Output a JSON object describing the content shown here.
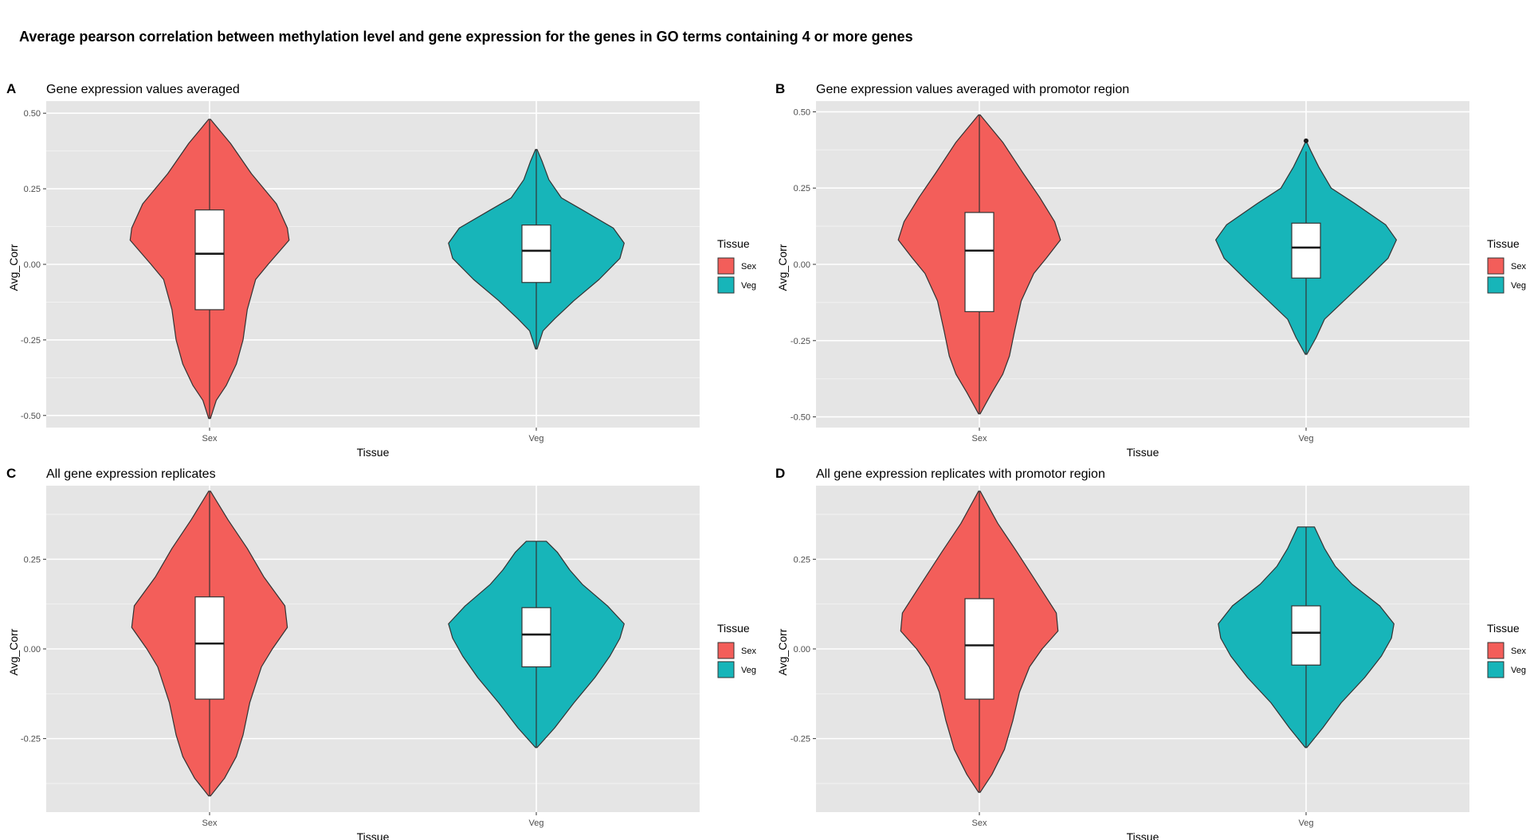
{
  "title": "Average pearson correlation between methylation level and gene expression for the genes in GO terms containing 4 or more genes",
  "colors": {
    "Sex": "#F35E5A",
    "Veg": "#17B5B9",
    "panel_bg": "#E5E5E5",
    "grid": "#FFFFFF"
  },
  "chart_data": [
    {
      "type": "violin",
      "letter": "A",
      "title": "Gene expression values averaged",
      "xlabel": "Tissue",
      "ylabel": "Avg_Corr",
      "ylim": [
        -0.54,
        0.54
      ],
      "yticks": [
        -0.5,
        -0.25,
        0,
        0.25,
        0.5
      ],
      "ytick_labels": [
        "-0.50",
        "-0.25",
        "0.00",
        "0.25",
        "0.50"
      ],
      "categories": [
        "Sex",
        "Veg"
      ],
      "legend": {
        "title": "Tissue",
        "entries": [
          "Sex",
          "Veg"
        ],
        "position": "right"
      },
      "series": [
        {
          "name": "Sex",
          "min": -0.51,
          "max": 0.48,
          "q1": -0.15,
          "median": 0.035,
          "q3": 0.18,
          "outliers": [],
          "density": [
            [
              -0.51,
              0.01
            ],
            [
              -0.45,
              0.08
            ],
            [
              -0.4,
              0.2
            ],
            [
              -0.33,
              0.32
            ],
            [
              -0.25,
              0.4
            ],
            [
              -0.15,
              0.45
            ],
            [
              -0.05,
              0.55
            ],
            [
              0.0,
              0.7
            ],
            [
              0.08,
              0.95
            ],
            [
              0.12,
              0.93
            ],
            [
              0.2,
              0.8
            ],
            [
              0.3,
              0.5
            ],
            [
              0.4,
              0.25
            ],
            [
              0.48,
              0.01
            ]
          ]
        },
        {
          "name": "Veg",
          "min": -0.28,
          "max": 0.38,
          "q1": -0.06,
          "median": 0.045,
          "q3": 0.13,
          "outliers": [],
          "density": [
            [
              -0.28,
              0.01
            ],
            [
              -0.22,
              0.08
            ],
            [
              -0.18,
              0.22
            ],
            [
              -0.12,
              0.45
            ],
            [
              -0.05,
              0.75
            ],
            [
              0.02,
              1.0
            ],
            [
              0.07,
              1.05
            ],
            [
              0.12,
              0.92
            ],
            [
              0.18,
              0.55
            ],
            [
              0.22,
              0.3
            ],
            [
              0.28,
              0.15
            ],
            [
              0.34,
              0.07
            ],
            [
              0.38,
              0.01
            ]
          ]
        }
      ]
    },
    {
      "type": "violin",
      "letter": "B",
      "title": "Gene expression values averaged with promotor region",
      "xlabel": "Tissue",
      "ylabel": "Avg_Corr",
      "ylim": [
        -0.535,
        0.535
      ],
      "yticks": [
        -0.5,
        -0.25,
        0,
        0.25,
        0.5
      ],
      "ytick_labels": [
        "-0.50",
        "-0.25",
        "0.00",
        "0.25",
        "0.50"
      ],
      "categories": [
        "Sex",
        "Veg"
      ],
      "legend": {
        "title": "Tissue",
        "entries": [
          "Sex",
          "Veg"
        ],
        "position": "right"
      },
      "series": [
        {
          "name": "Sex",
          "min": -0.49,
          "max": 0.49,
          "q1": -0.155,
          "median": 0.045,
          "q3": 0.17,
          "outliers": [],
          "density": [
            [
              -0.49,
              0.01
            ],
            [
              -0.42,
              0.15
            ],
            [
              -0.36,
              0.28
            ],
            [
              -0.3,
              0.36
            ],
            [
              -0.22,
              0.42
            ],
            [
              -0.12,
              0.5
            ],
            [
              -0.03,
              0.65
            ],
            [
              0.02,
              0.8
            ],
            [
              0.08,
              0.97
            ],
            [
              0.14,
              0.9
            ],
            [
              0.22,
              0.72
            ],
            [
              0.3,
              0.52
            ],
            [
              0.4,
              0.28
            ],
            [
              0.49,
              0.01
            ]
          ]
        },
        {
          "name": "Veg",
          "min": -0.295,
          "max": 0.37,
          "q1": -0.045,
          "median": 0.055,
          "q3": 0.135,
          "outliers": [
            0.405
          ],
          "density": [
            [
              -0.295,
              0.01
            ],
            [
              -0.24,
              0.12
            ],
            [
              -0.18,
              0.22
            ],
            [
              -0.12,
              0.45
            ],
            [
              -0.05,
              0.72
            ],
            [
              0.02,
              0.98
            ],
            [
              0.08,
              1.08
            ],
            [
              0.13,
              0.95
            ],
            [
              0.2,
              0.58
            ],
            [
              0.25,
              0.3
            ],
            [
              0.32,
              0.15
            ],
            [
              0.37,
              0.06
            ],
            [
              0.4,
              0.01
            ]
          ]
        }
      ]
    },
    {
      "type": "violin",
      "letter": "C",
      "title": "All gene expression replicates",
      "xlabel": "Tissue",
      "ylabel": "Avg_Corr",
      "ylim": [
        -0.455,
        0.455
      ],
      "yticks": [
        -0.25,
        0,
        0.25
      ],
      "ytick_labels": [
        "-0.25",
        "0.00",
        "0.25"
      ],
      "categories": [
        "Sex",
        "Veg"
      ],
      "legend": {
        "title": "Tissue",
        "entries": [
          "Sex",
          "Veg"
        ],
        "position": "right"
      },
      "series": [
        {
          "name": "Sex",
          "min": -0.41,
          "max": 0.44,
          "q1": -0.14,
          "median": 0.015,
          "q3": 0.145,
          "outliers": [],
          "density": [
            [
              -0.41,
              0.01
            ],
            [
              -0.36,
              0.18
            ],
            [
              -0.3,
              0.32
            ],
            [
              -0.24,
              0.4
            ],
            [
              -0.15,
              0.48
            ],
            [
              -0.05,
              0.62
            ],
            [
              0.0,
              0.75
            ],
            [
              0.06,
              0.93
            ],
            [
              0.12,
              0.9
            ],
            [
              0.2,
              0.65
            ],
            [
              0.28,
              0.45
            ],
            [
              0.36,
              0.22
            ],
            [
              0.44,
              0.01
            ]
          ]
        },
        {
          "name": "Veg",
          "min": -0.275,
          "max": 0.3,
          "q1": -0.05,
          "median": 0.04,
          "q3": 0.115,
          "outliers": [],
          "density": [
            [
              -0.275,
              0.01
            ],
            [
              -0.22,
              0.22
            ],
            [
              -0.15,
              0.45
            ],
            [
              -0.08,
              0.7
            ],
            [
              -0.02,
              0.88
            ],
            [
              0.03,
              1.0
            ],
            [
              0.07,
              1.05
            ],
            [
              0.12,
              0.85
            ],
            [
              0.18,
              0.55
            ],
            [
              0.22,
              0.4
            ],
            [
              0.27,
              0.25
            ],
            [
              0.3,
              0.12
            ]
          ]
        }
      ]
    },
    {
      "type": "violin",
      "letter": "D",
      "title": "All gene expression replicates with promotor region",
      "xlabel": "Tissue",
      "ylabel": "Avg_Corr",
      "ylim": [
        -0.455,
        0.455
      ],
      "yticks": [
        -0.25,
        0,
        0.25
      ],
      "ytick_labels": [
        "-0.25",
        "0.00",
        "0.25"
      ],
      "categories": [
        "Sex",
        "Veg"
      ],
      "legend": {
        "title": "Tissue",
        "entries": [
          "Sex",
          "Veg"
        ],
        "position": "right"
      },
      "series": [
        {
          "name": "Sex",
          "min": -0.4,
          "max": 0.44,
          "q1": -0.14,
          "median": 0.01,
          "q3": 0.14,
          "outliers": [],
          "density": [
            [
              -0.4,
              0.01
            ],
            [
              -0.35,
              0.15
            ],
            [
              -0.28,
              0.3
            ],
            [
              -0.2,
              0.4
            ],
            [
              -0.12,
              0.48
            ],
            [
              -0.05,
              0.6
            ],
            [
              0.0,
              0.75
            ],
            [
              0.05,
              0.94
            ],
            [
              0.1,
              0.92
            ],
            [
              0.18,
              0.7
            ],
            [
              0.27,
              0.45
            ],
            [
              0.35,
              0.22
            ],
            [
              0.44,
              0.01
            ]
          ]
        },
        {
          "name": "Veg",
          "min": -0.275,
          "max": 0.34,
          "q1": -0.045,
          "median": 0.045,
          "q3": 0.12,
          "outliers": [],
          "density": [
            [
              -0.275,
              0.01
            ],
            [
              -0.22,
              0.2
            ],
            [
              -0.15,
              0.42
            ],
            [
              -0.08,
              0.7
            ],
            [
              -0.02,
              0.9
            ],
            [
              0.03,
              1.02
            ],
            [
              0.07,
              1.05
            ],
            [
              0.12,
              0.88
            ],
            [
              0.18,
              0.55
            ],
            [
              0.23,
              0.35
            ],
            [
              0.28,
              0.22
            ],
            [
              0.34,
              0.1
            ]
          ]
        }
      ]
    }
  ]
}
